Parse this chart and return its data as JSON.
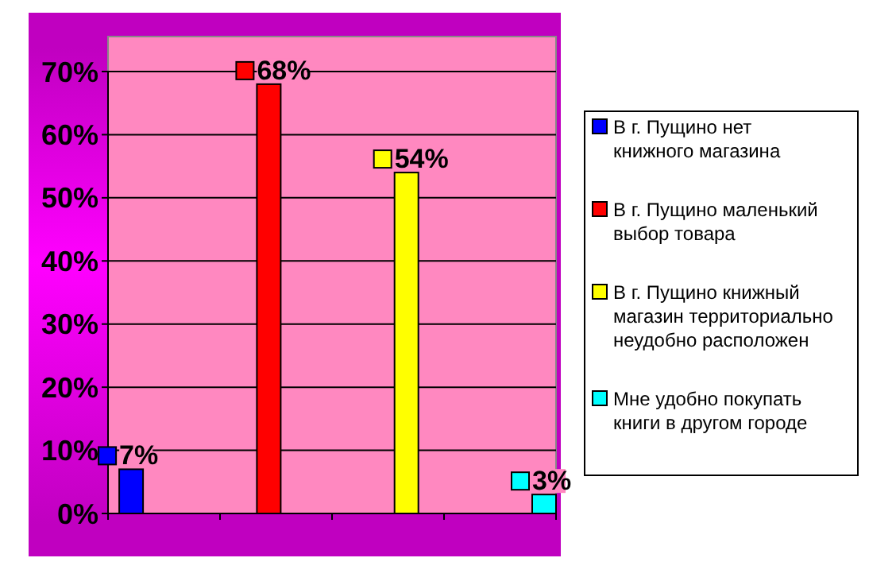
{
  "chart_data": {
    "type": "bar",
    "categories": [
      null,
      null,
      null,
      null
    ],
    "series": [
      {
        "name": "В г. Пущино нет книжного магазина",
        "color": "#0000ff",
        "values": [
          7,
          null,
          null,
          null
        ],
        "value_labels": [
          "7%",
          null,
          null,
          null
        ]
      },
      {
        "name": "В г. Пущино маленький выбор товара",
        "color": "#ff0000",
        "values": [
          null,
          68,
          null,
          null
        ],
        "value_labels": [
          null,
          "68%",
          null,
          null
        ]
      },
      {
        "name": "В г. Пущино книжный магазин территориально неудобно расположен",
        "color": "#ffff00",
        "values": [
          null,
          null,
          54,
          null
        ],
        "value_labels": [
          null,
          null,
          "54%",
          null
        ]
      },
      {
        "name": "Мне удобно покупать книги в другом городе",
        "color": "#00ffff",
        "values": [
          null,
          null,
          null,
          3
        ],
        "value_labels": [
          null,
          null,
          null,
          "3%"
        ]
      }
    ],
    "ylim": [
      0,
      70
    ],
    "yticks": [
      {
        "value": 0,
        "label": "0%"
      },
      {
        "value": 10,
        "label": "10%"
      },
      {
        "value": 20,
        "label": "20%"
      },
      {
        "value": 30,
        "label": "30%"
      },
      {
        "value": 40,
        "label": "40%"
      },
      {
        "value": 50,
        "label": "50%"
      },
      {
        "value": 60,
        "label": "60%"
      },
      {
        "value": 70,
        "label": "70%"
      }
    ],
    "grid": "y",
    "legend": "right"
  }
}
